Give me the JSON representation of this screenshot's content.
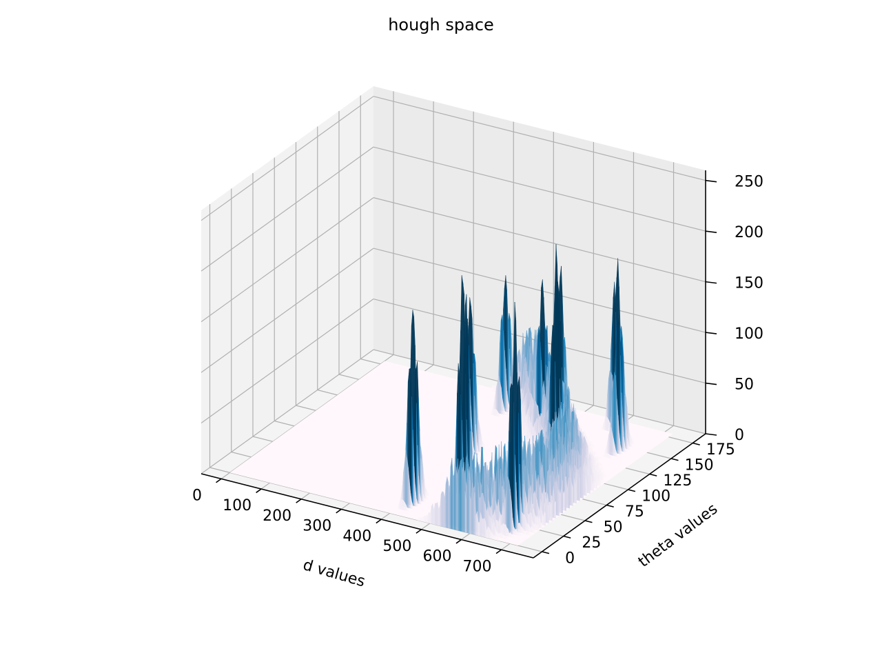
{
  "chart_data": {
    "type": "surface3d",
    "title": "hough space",
    "xlabel": "d values",
    "ylabel": "theta values",
    "zlabel": "",
    "x_ticks": [
      "0",
      "100",
      "200",
      "300",
      "400",
      "500",
      "600",
      "700"
    ],
    "y_ticks": [
      "0",
      "25",
      "50",
      "75",
      "100",
      "125",
      "150",
      "175"
    ],
    "z_ticks": [
      "0",
      "50",
      "100",
      "150",
      "200",
      "250"
    ],
    "xlim": [
      -50,
      780
    ],
    "ylim": [
      -10,
      190
    ],
    "zlim": [
      0,
      260
    ],
    "grid": true,
    "colormap": "PuBu",
    "colormap_colors": [
      "#fff7fb",
      "#ece7f2",
      "#d0d1e6",
      "#a6bddb",
      "#74a9cf",
      "#3690c0",
      "#0570b0",
      "#045a8d",
      "#023858"
    ],
    "floor_color": "#fff7fb",
    "peaks": [
      {
        "d": 415,
        "theta": 20,
        "z": 210
      },
      {
        "d": 530,
        "theta": 25,
        "z": 265
      },
      {
        "d": 670,
        "theta": 20,
        "z": 230
      },
      {
        "d": 395,
        "theta": 95,
        "z": 175
      },
      {
        "d": 600,
        "theta": 100,
        "z": 225
      },
      {
        "d": 500,
        "theta": 150,
        "z": 190
      },
      {
        "d": 345,
        "theta": 160,
        "z": 140
      },
      {
        "d": 590,
        "theta": 175,
        "z": 175
      },
      {
        "d": 480,
        "theta": 140,
        "z": 160
      },
      {
        "d": 660,
        "theta": 145,
        "z": 145
      }
    ],
    "band_center_d": 470,
    "band_amplitude_d": 200,
    "band_base_z": 55
  }
}
